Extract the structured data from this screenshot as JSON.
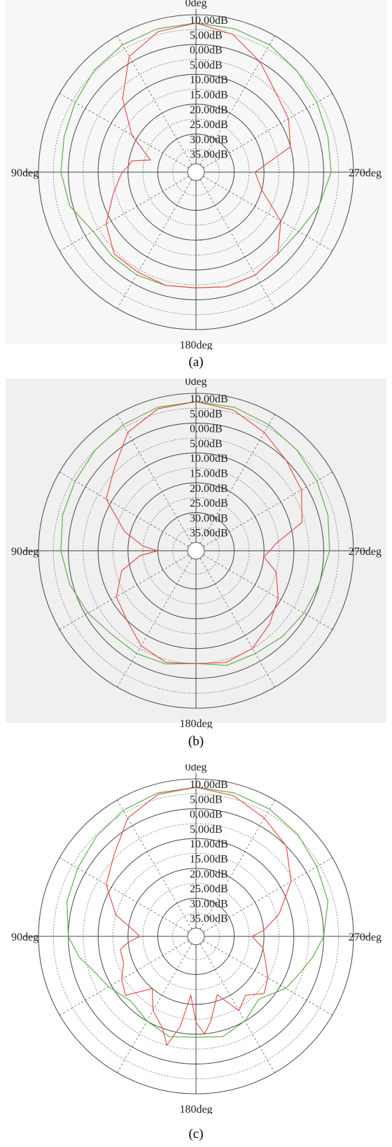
{
  "chart_data": [
    {
      "type": "line",
      "projection": "polar",
      "panel_label": "(a)",
      "background": "#f7f7f7",
      "angle_direction": "counterclockwise",
      "angle_zero": "top",
      "angle_labels": [
        "0deg",
        "90deg",
        "180deg",
        "270deg"
      ],
      "radial_range_db": [
        -40,
        10
      ],
      "radial_labels": [
        "10.00dB",
        "5.00dB",
        "0.00dB",
        "5.00dB",
        "10.00dB",
        "15.00dB",
        "20.00dB",
        "25.00dB",
        "30.00dB",
        "35.00dB"
      ],
      "grid": true,
      "series": [
        {
          "color": "#5fae4a",
          "x": [
            0,
            15,
            30,
            45,
            60,
            75,
            90,
            105,
            120,
            135,
            150,
            165,
            180,
            195,
            210,
            225,
            240,
            255,
            270,
            285,
            300,
            315,
            330,
            345,
            360
          ],
          "values": [
            7.2,
            7,
            6.5,
            5.5,
            4,
            3,
            2.5,
            1,
            -3,
            -3,
            -3,
            -3.5,
            -4,
            -3,
            -3,
            -4,
            -3,
            0,
            2.5,
            3,
            4,
            5.2,
            6.5,
            7,
            7.2
          ]
        },
        {
          "color": "#e8504a",
          "x": [
            0,
            15,
            30,
            45,
            60,
            75,
            80,
            85,
            90,
            105,
            120,
            135,
            150,
            165,
            180,
            195,
            210,
            225,
            240,
            255,
            270,
            285,
            300,
            315,
            330,
            345,
            360
          ],
          "values": [
            7.2,
            6,
            2,
            -8,
            -18,
            -27,
            -21,
            -20,
            -18,
            -14,
            -8,
            -4,
            -4,
            -3.5,
            -4,
            -3,
            -3,
            -4,
            -10,
            -20,
            -23,
            -10,
            -7,
            -5,
            0,
            5,
            7.2
          ]
        }
      ]
    },
    {
      "type": "line",
      "projection": "polar",
      "panel_label": "(b)",
      "background": "#f0f0f0",
      "angle_direction": "counterclockwise",
      "angle_zero": "top",
      "angle_labels": [
        "0deg",
        "90deg",
        "180deg",
        "270deg"
      ],
      "radial_range_db": [
        -40,
        10
      ],
      "radial_labels": [
        "10.00dB",
        "5.00dB",
        "0.00dB",
        "5.00dB",
        "10.00dB",
        "15.00dB",
        "20.00dB",
        "25.00dB",
        "30.00dB",
        "35.00dB"
      ],
      "grid": true,
      "series": [
        {
          "color": "#5fae4a",
          "x": [
            0,
            15,
            30,
            45,
            60,
            75,
            90,
            105,
            120,
            135,
            150,
            165,
            180,
            195,
            210,
            225,
            240,
            255,
            270,
            285,
            300,
            315,
            330,
            345,
            360
          ],
          "values": [
            7.2,
            7,
            6,
            5,
            4,
            3.5,
            2.5,
            1,
            -1,
            -3,
            -3,
            -3.5,
            -5,
            -3,
            -3,
            -2,
            -1,
            0,
            2,
            3,
            4,
            5,
            6,
            7,
            7.2
          ]
        },
        {
          "color": "#e8504a",
          "x": [
            0,
            15,
            30,
            45,
            60,
            75,
            85,
            90,
            95,
            105,
            120,
            135,
            150,
            165,
            180,
            195,
            210,
            225,
            240,
            255,
            265,
            270,
            275,
            285,
            300,
            315,
            330,
            345,
            360
          ],
          "values": [
            7.2,
            6.5,
            3,
            -4,
            -8,
            -18,
            -25,
            -30,
            -24,
            -17,
            -12,
            -10,
            -6,
            -4,
            -5,
            -4,
            -5,
            -8,
            -11,
            -15,
            -20,
            -18,
            -16,
            -6,
            -2,
            0,
            3,
            6,
            7.2
          ]
        }
      ]
    },
    {
      "type": "line",
      "projection": "polar",
      "panel_label": "(c)",
      "background": "#ffffff",
      "angle_direction": "counterclockwise",
      "angle_zero": "top",
      "angle_labels": [
        "0deg",
        "90deg",
        "180deg",
        "270deg"
      ],
      "radial_range_db": [
        -40,
        10
      ],
      "radial_labels": [
        "10.00dB",
        "5.00dB",
        "0.00dB",
        "5.00dB",
        "10.00dB",
        "15.00dB",
        "20.00dB",
        "25.00dB",
        "30.00dB",
        "35.00dB"
      ],
      "grid": true,
      "series": [
        {
          "color": "#5fae4a",
          "x": [
            0,
            15,
            30,
            45,
            60,
            75,
            90,
            100,
            110,
            120,
            135,
            150,
            165,
            180,
            195,
            210,
            225,
            240,
            250,
            260,
            270,
            285,
            300,
            315,
            330,
            345,
            360
          ],
          "values": [
            7.2,
            7,
            6,
            4.5,
            3,
            2,
            0,
            -3,
            -7,
            -9,
            -12,
            -10,
            -8,
            -9,
            -8,
            -10,
            -13,
            -8,
            -6,
            -3,
            0,
            3,
            4,
            5.5,
            6.5,
            7,
            7.2
          ]
        },
        {
          "color": "#e8504a",
          "x": [
            0,
            15,
            30,
            45,
            60,
            75,
            85,
            90,
            95,
            100,
            110,
            120,
            130,
            140,
            150,
            160,
            165,
            170,
            175,
            180,
            185,
            190,
            200,
            210,
            220,
            230,
            240,
            250,
            260,
            270,
            275,
            285,
            300,
            315,
            330,
            345,
            360
          ],
          "values": [
            7.2,
            6.5,
            3,
            -4,
            -8,
            -15,
            -22,
            -24,
            -20,
            -17,
            -17,
            -14,
            -12,
            -20,
            -14,
            -10,
            -5,
            -12,
            -23,
            -14,
            -10,
            -14,
            -22,
            -14,
            -17,
            -13,
            -15,
            -18,
            -20,
            -24,
            -20,
            -14,
            -6,
            0,
            3,
            6,
            7.2
          ]
        }
      ]
    }
  ]
}
